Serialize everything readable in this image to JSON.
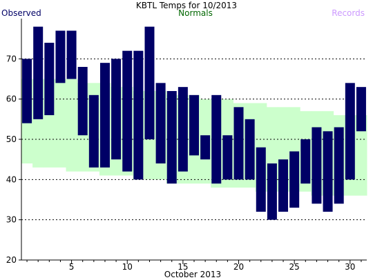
{
  "chart_data": {
    "type": "bar",
    "title": "KBTL Temps for 10/2013",
    "xlabel": "October 2013",
    "ylabel": "",
    "legend": [
      {
        "label": "Observed",
        "color": "#000066"
      },
      {
        "label": "Normals",
        "color": "#006600"
      },
      {
        "label": "Records",
        "color": "#cc99ff"
      }
    ],
    "xlim": [
      0.5,
      31.5
    ],
    "ylim": [
      20,
      80
    ],
    "x_ticks": [
      5,
      10,
      15,
      20,
      25,
      30
    ],
    "y_ticks": [
      20,
      30,
      40,
      50,
      60,
      70
    ],
    "grid_y": [
      30,
      40,
      50,
      60,
      70
    ],
    "days": [
      1,
      2,
      3,
      4,
      5,
      6,
      7,
      8,
      9,
      10,
      11,
      12,
      13,
      14,
      15,
      16,
      17,
      18,
      19,
      20,
      21,
      22,
      23,
      24,
      25,
      26,
      27,
      28,
      29,
      30,
      31
    ],
    "observed_high": [
      70,
      78,
      74,
      77,
      77,
      68,
      61,
      69,
      70,
      72,
      72,
      78,
      64,
      62,
      63,
      61,
      51,
      61,
      51,
      58,
      55,
      48,
      44,
      45,
      47,
      50,
      53,
      52,
      53,
      64,
      63
    ],
    "observed_low": [
      54,
      55,
      56,
      64,
      65,
      51,
      43,
      43,
      45,
      42,
      40,
      50,
      44,
      39,
      42,
      46,
      45,
      39,
      40,
      40,
      40,
      32,
      30,
      32,
      33,
      39,
      34,
      32,
      34,
      40,
      52
    ],
    "normal_high": [
      65,
      65,
      65,
      65,
      65,
      64,
      64,
      64,
      63,
      63,
      62,
      62,
      62,
      61,
      61,
      61,
      60,
      60,
      60,
      59,
      59,
      59,
      58,
      58,
      58,
      57,
      57,
      57,
      56,
      56,
      56
    ],
    "normal_low": [
      44,
      43,
      43,
      43,
      42,
      42,
      42,
      41,
      41,
      41,
      40,
      40,
      40,
      39,
      39,
      39,
      39,
      38,
      38,
      38,
      38,
      37,
      37,
      37,
      37,
      37,
      36,
      36,
      36,
      36,
      36
    ]
  },
  "colors": {
    "observed_bar": "#000066",
    "normals_band": "#ccffcc",
    "grid": "#000000",
    "axis": "#000000"
  }
}
